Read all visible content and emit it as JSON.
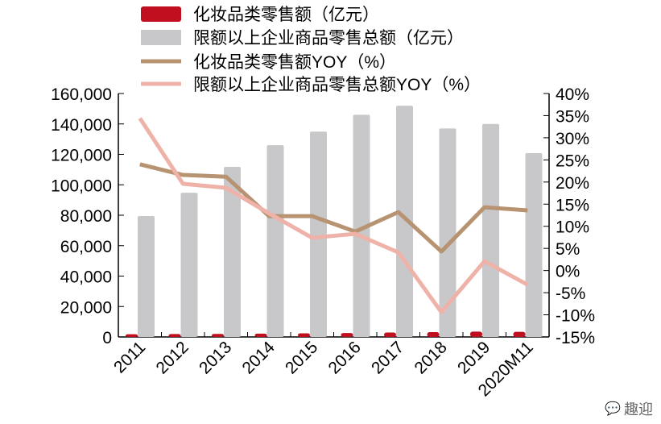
{
  "chart_data": {
    "type": "bar",
    "categories": [
      "2011",
      "2012",
      "2013",
      "2014",
      "2015",
      "2016",
      "2017",
      "2018",
      "2019",
      "2020M11"
    ],
    "series": [
      {
        "name": "化妆品类零售额（亿元）",
        "type": "bar",
        "axis": "left",
        "color": "#c00f1e",
        "values": [
          1760,
          1900,
          2000,
          2200,
          2400,
          2600,
          2900,
          3200,
          3500,
          3400
        ]
      },
      {
        "name": "限额以上企业商品零售总额（亿元）",
        "type": "bar",
        "axis": "left",
        "color": "#c8c8ca",
        "values": [
          79500,
          94800,
          111800,
          126000,
          135000,
          146000,
          152000,
          137000,
          140000,
          120800
        ]
      },
      {
        "name": "化妆品类零售额YOY（%）",
        "type": "line",
        "axis": "right",
        "color": "#b89372",
        "values": [
          24.0,
          21.6,
          21.2,
          12.3,
          12.3,
          8.8,
          13.2,
          4.3,
          14.3,
          13.6
        ]
      },
      {
        "name": "限额以上企业商品零售总额YOY（%）",
        "type": "line",
        "axis": "right",
        "color": "#eeb2a8",
        "values": [
          34.4,
          19.6,
          18.7,
          12.9,
          7.4,
          8.3,
          4.1,
          -9.4,
          2.1,
          -3.2
        ]
      }
    ],
    "left_axis": {
      "range": [
        0,
        160000
      ],
      "ticks": [
        "0",
        "20,000",
        "40,000",
        "60,000",
        "80,000",
        "100,000",
        "120,000",
        "140,000",
        "160,000"
      ]
    },
    "right_axis": {
      "range": [
        -15,
        40
      ],
      "ticks": [
        "-15%",
        "-10%",
        "-5%",
        "0%",
        "5%",
        "10%",
        "15%",
        "20%",
        "25%",
        "30%",
        "35%",
        "40%"
      ]
    },
    "legend": "top",
    "grid": false
  },
  "watermark": "趣迎"
}
